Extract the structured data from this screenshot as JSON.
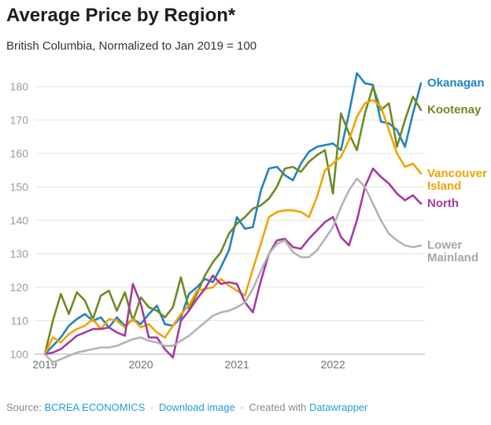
{
  "header": {
    "title": "Average Price by Region*",
    "subtitle": "British Columbia, Normalized to Jan 2019 = 100"
  },
  "chart_data": {
    "type": "line",
    "title": "Average Price by Region*",
    "subtitle": "British Columbia, Normalized to Jan 2019 = 100",
    "x_unit": "month",
    "x_range": [
      "Jan 2019",
      "Dec 2022"
    ],
    "x_tick_labels": [
      "2019",
      "2020",
      "2021",
      "2022"
    ],
    "y_ticks": [
      100,
      110,
      120,
      130,
      140,
      150,
      160,
      170,
      180
    ],
    "ylim": [
      97,
      185
    ],
    "grid": "horizontal",
    "legend_position": "right-direct-labels",
    "series": [
      {
        "name": "Okanagan",
        "label_lines": [
          "Okanagan"
        ],
        "color": "#1e82c6",
        "values": [
          100,
          102.5,
          105,
          108.5,
          110.5,
          112,
          110,
          111,
          108,
          111,
          108.5,
          110.5,
          109,
          112,
          114.5,
          109,
          108.5,
          111,
          118,
          120,
          122.5,
          121.5,
          126,
          131,
          141,
          137.5,
          138,
          149,
          155.5,
          156,
          153.5,
          152,
          157,
          160.5,
          162,
          162.5,
          163,
          161,
          172,
          184,
          181,
          180.5,
          169.5,
          169,
          167,
          162,
          172,
          181
        ]
      },
      {
        "name": "Kootenay",
        "label_lines": [
          "Kootenay"
        ],
        "color": "#6e8a22",
        "values": [
          100,
          110,
          118,
          112,
          118.5,
          116,
          110.5,
          117.5,
          119,
          113,
          118.5,
          110,
          117,
          114,
          113,
          111,
          114,
          123,
          113.5,
          118,
          123.5,
          127.5,
          130.5,
          136,
          139,
          141,
          143.5,
          144.5,
          146.5,
          150,
          155.5,
          156,
          154.5,
          157.5,
          159.5,
          161,
          148,
          172,
          166,
          161,
          172,
          180,
          173,
          175,
          162,
          170,
          177,
          173
        ]
      },
      {
        "name": "Vancouver Island",
        "label_lines": [
          "Vancouver",
          "Island"
        ],
        "color": "#f0a400",
        "values": [
          100,
          105,
          103.5,
          106,
          107.5,
          108.5,
          110.5,
          107.5,
          110.5,
          110,
          108,
          110.5,
          108,
          109,
          106.5,
          105,
          108.5,
          112,
          114.5,
          119,
          119.5,
          120,
          122.5,
          120.5,
          119,
          117.5,
          125.5,
          133,
          141,
          142.5,
          143,
          143,
          142.5,
          141,
          147,
          155,
          157,
          159,
          164,
          171,
          175,
          176,
          174,
          167,
          160,
          156,
          157,
          154
        ]
      },
      {
        "name": "North",
        "label_lines": [
          "North"
        ],
        "color": "#a43a9d",
        "values": [
          100,
          100.5,
          101.5,
          103.5,
          105.5,
          106.5,
          107.5,
          107.5,
          108,
          106.5,
          105.5,
          121,
          115,
          105,
          105,
          101.5,
          99,
          110,
          113,
          116.5,
          119.5,
          123.5,
          121,
          121.5,
          121,
          115.5,
          112.5,
          122,
          130,
          134,
          134.5,
          132,
          131.5,
          134.5,
          137,
          139.5,
          141,
          135,
          132.5,
          140,
          150,
          155.5,
          153,
          151,
          148,
          146,
          147.5,
          145
        ]
      },
      {
        "name": "Lower Mainland",
        "label_lines": [
          "Lower",
          "Mainland"
        ],
        "color": "#b3b3b3",
        "label_color": "#a5a5a5",
        "values": [
          100,
          97.5,
          98.5,
          99.5,
          100.5,
          101,
          101.5,
          102,
          102,
          102.5,
          103.5,
          104.5,
          105,
          104,
          103.5,
          102.5,
          102.5,
          104,
          105.5,
          107.5,
          109.5,
          111.5,
          112.5,
          113,
          114,
          115.5,
          119.5,
          125,
          130,
          133,
          134,
          130.5,
          129,
          129,
          131,
          134.5,
          138,
          144,
          149,
          152.5,
          150,
          145,
          140,
          136,
          134,
          132.5,
          132,
          132.5
        ]
      }
    ],
    "axis_colors": {
      "y_tick_label": "#9b9b9b",
      "x_tick_label": "#6e6e6e",
      "grid": "#e3e3e3",
      "baseline": "#ababab"
    }
  },
  "footer": {
    "source_label": "Source:",
    "source_link": "BCREA ECONOMICS",
    "separator": "·",
    "download_link": "Download image",
    "created_with": "Created with",
    "datawrapper_link": "Datawrapper",
    "link_color": "#1d9dd8"
  }
}
